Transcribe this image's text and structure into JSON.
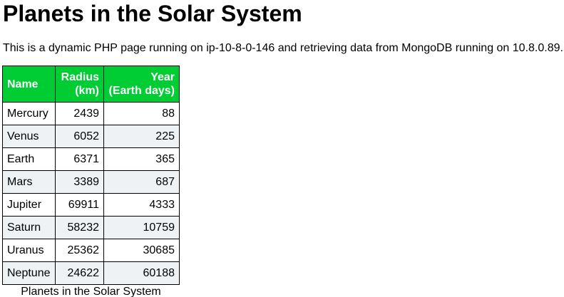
{
  "page": {
    "title": "Planets in the Solar System",
    "intro": "This is a dynamic PHP page running on ip-10-8-0-146 and retrieving data from MongoDB running on 10.8.0.89."
  },
  "table": {
    "headers": {
      "name": "Name",
      "radius_line1": "Radius",
      "radius_line2": "(km)",
      "year_line1": "Year",
      "year_line2": "(Earth days)"
    },
    "rows": [
      {
        "name": "Mercury",
        "radius": "2439",
        "year": "88"
      },
      {
        "name": "Venus",
        "radius": "6052",
        "year": "225"
      },
      {
        "name": "Earth",
        "radius": "6371",
        "year": "365"
      },
      {
        "name": "Mars",
        "radius": "3389",
        "year": "687"
      },
      {
        "name": "Jupiter",
        "radius": "69911",
        "year": "4333"
      },
      {
        "name": "Saturn",
        "radius": "58232",
        "year": "10759"
      },
      {
        "name": "Uranus",
        "radius": "25362",
        "year": "30685"
      },
      {
        "name": "Neptune",
        "radius": "24622",
        "year": "60188"
      }
    ],
    "caption": "Planets in the Solar System",
    "header_color": "#00cc33",
    "stripe_color": "#eef2f5"
  }
}
